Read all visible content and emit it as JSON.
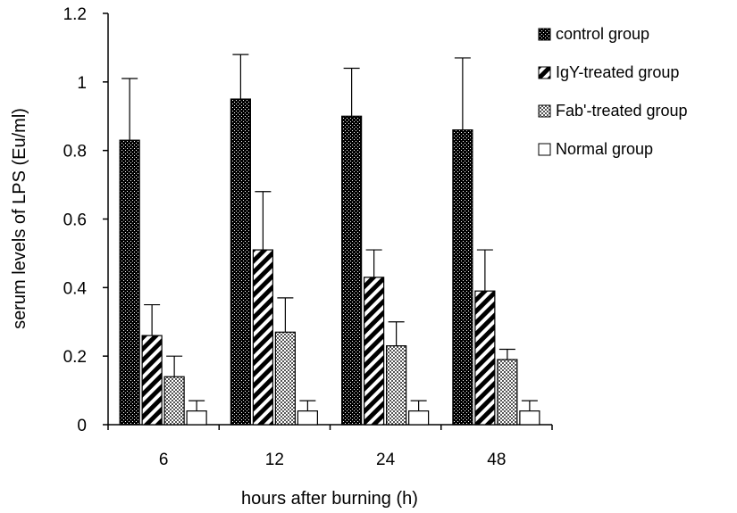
{
  "chart_data": {
    "type": "bar",
    "title": "",
    "xlabel": "hours after burning (h)",
    "ylabel": "serum levels of LPS (Eu/ml)",
    "ylim": [
      0,
      1.2
    ],
    "yticks": [
      "0",
      "0.2",
      "0.4",
      "0.6",
      "0.8",
      "1",
      "1.2"
    ],
    "categories": [
      "6",
      "12",
      "24",
      "48"
    ],
    "grid": false,
    "legend_position": "top-right",
    "series": [
      {
        "name": "control group",
        "pattern": "dots-dense",
        "values": [
          0.83,
          0.95,
          0.9,
          0.86
        ],
        "errors": [
          0.18,
          0.13,
          0.14,
          0.21
        ]
      },
      {
        "name": "IgY-treated group",
        "pattern": "diagonal-stripes",
        "values": [
          0.26,
          0.51,
          0.43,
          0.39
        ],
        "errors": [
          0.09,
          0.17,
          0.08,
          0.12
        ]
      },
      {
        "name": "Fab'-treated group",
        "pattern": "checker",
        "values": [
          0.14,
          0.27,
          0.23,
          0.19
        ],
        "errors": [
          0.06,
          0.1,
          0.07,
          0.03
        ]
      },
      {
        "name": "Normal group",
        "pattern": "none",
        "values": [
          0.04,
          0.04,
          0.04,
          0.04
        ],
        "errors": [
          0.03,
          0.03,
          0.03,
          0.03
        ]
      }
    ]
  }
}
